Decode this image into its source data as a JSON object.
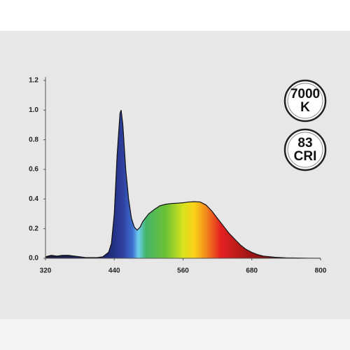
{
  "chart_data": {
    "type": "area",
    "x": [
      320,
      330,
      340,
      350,
      360,
      370,
      380,
      390,
      400,
      410,
      420,
      430,
      435,
      440,
      445,
      450,
      452,
      455,
      460,
      465,
      470,
      475,
      480,
      485,
      490,
      500,
      510,
      520,
      530,
      540,
      550,
      560,
      570,
      580,
      590,
      600,
      610,
      620,
      630,
      640,
      650,
      660,
      670,
      680,
      690,
      700,
      720,
      740,
      760,
      780,
      800
    ],
    "values": [
      0.01,
      0.02,
      0.015,
      0.02,
      0.02,
      0.015,
      0.01,
      0.005,
      0.005,
      0.005,
      0.01,
      0.04,
      0.1,
      0.3,
      0.7,
      0.98,
      1.0,
      0.9,
      0.6,
      0.4,
      0.27,
      0.21,
      0.19,
      0.21,
      0.25,
      0.3,
      0.33,
      0.355,
      0.365,
      0.37,
      0.372,
      0.375,
      0.38,
      0.382,
      0.38,
      0.36,
      0.32,
      0.27,
      0.22,
      0.17,
      0.13,
      0.09,
      0.06,
      0.04,
      0.025,
      0.015,
      0.007,
      0.003,
      0.002,
      0.001,
      0
    ],
    "xlim": [
      320,
      800
    ],
    "xticks": [
      320,
      440,
      560,
      680,
      800
    ],
    "ylim": [
      0,
      1.2
    ],
    "yticks": [
      {
        "value": 0,
        "label": "0.0"
      },
      0.2,
      0.4,
      0.6,
      0.8,
      {
        "value": 1,
        "label": "1.0"
      },
      1.2
    ],
    "grid": false,
    "line_color": "#111111",
    "gradient": [
      {
        "x": 320,
        "color": "#1b1b3a"
      },
      {
        "x": 430,
        "color": "#1e2a78"
      },
      {
        "x": 455,
        "color": "#2e3f9e"
      },
      {
        "x": 472,
        "color": "#3f6fd0"
      },
      {
        "x": 482,
        "color": "#6ecff0"
      },
      {
        "x": 495,
        "color": "#46b56a"
      },
      {
        "x": 530,
        "color": "#6cc236"
      },
      {
        "x": 560,
        "color": "#d8e21e"
      },
      {
        "x": 580,
        "color": "#fbd11a"
      },
      {
        "x": 600,
        "color": "#f38a1c"
      },
      {
        "x": 625,
        "color": "#e32222"
      },
      {
        "x": 665,
        "color": "#b01818"
      },
      {
        "x": 720,
        "color": "#6a1010"
      },
      {
        "x": 800,
        "color": "#3a0808"
      }
    ],
    "annotations": [
      {
        "lines": [
          "7000",
          "K"
        ]
      },
      {
        "lines": [
          "83",
          "CRI"
        ]
      }
    ]
  }
}
